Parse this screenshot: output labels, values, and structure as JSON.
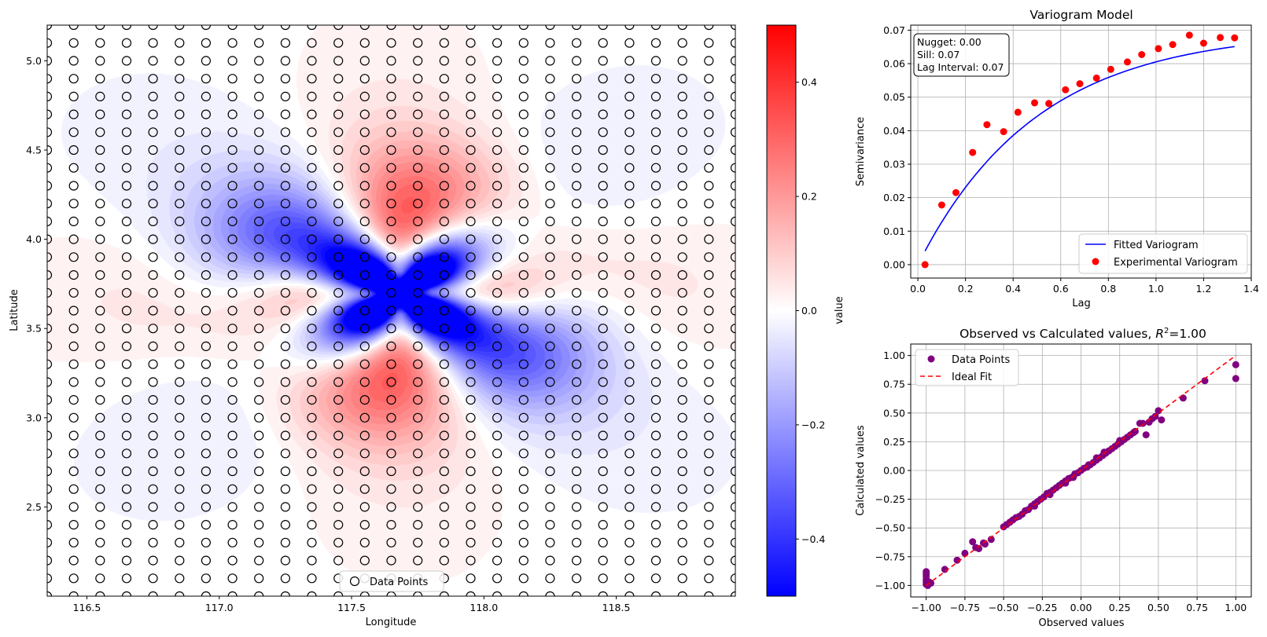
{
  "colors": {
    "vario_line": "#0000ff",
    "vario_points": "#ff0000",
    "scatter_points": "#800080",
    "ideal_line": "#ff0000",
    "grid": "#b0b0b0",
    "cmap_low": "#0000ff",
    "cmap_mid": "#ffffff",
    "cmap_high": "#ff0000"
  },
  "chart_data": [
    {
      "type": "heatmap",
      "xlabel": "Longitude",
      "ylabel": "Latitude",
      "xlim": [
        116.35,
        118.95
      ],
      "ylim": [
        2.0,
        5.2
      ],
      "x_ticks": [
        116.5,
        117.0,
        117.5,
        118.0,
        118.5
      ],
      "x_tick_labels": [
        "116.5",
        "117.0",
        "117.5",
        "118.0",
        "118.5"
      ],
      "y_ticks": [
        2.5,
        3.0,
        3.5,
        4.0,
        4.5,
        5.0
      ],
      "y_tick_labels": [
        "2.5",
        "3.0",
        "3.5",
        "4.0",
        "4.5",
        "5.0"
      ],
      "colorbar_label": "value",
      "colorbar_range": [
        -0.5,
        0.5
      ],
      "colorbar_ticks": [
        0.4,
        0.2,
        0.0,
        -0.2,
        -0.4
      ],
      "colorbar_tick_labels": [
        "0.4",
        "0.2",
        "0.0",
        "−0.2",
        "−0.4"
      ],
      "legend": [
        "Data Points"
      ],
      "legend_position": "lower center",
      "grid_points": {
        "x_start": 116.35,
        "x_step": 0.1,
        "x_count": 27,
        "y_start": 2.0,
        "y_step": 0.1,
        "y_count": 33
      }
    },
    {
      "type": "scatter",
      "title": "Variogram Model",
      "xlabel": "Lag",
      "ylabel": "Semivariance",
      "xlim": [
        -0.03,
        1.4
      ],
      "ylim": [
        -0.004,
        0.0715
      ],
      "x_ticks": [
        0.0,
        0.2,
        0.4,
        0.6,
        0.8,
        1.0,
        1.2,
        1.4
      ],
      "x_tick_labels": [
        "0.0",
        "0.2",
        "0.4",
        "0.6",
        "0.8",
        "1.0",
        "1.2",
        "1.4"
      ],
      "y_ticks": [
        0.0,
        0.01,
        0.02,
        0.03,
        0.04,
        0.05,
        0.06,
        0.07
      ],
      "y_tick_labels": [
        "0.00",
        "0.01",
        "0.02",
        "0.03",
        "0.04",
        "0.05",
        "0.06",
        "0.07"
      ],
      "grid": true,
      "annotation": [
        "Nugget: 0.00",
        "Sill: 0.07",
        "Lag Interval: 0.07"
      ],
      "legend": [
        "Fitted Variogram",
        "Experimental Variogram"
      ],
      "legend_position": "lower right",
      "fitted_model": {
        "nugget": 0.0,
        "sill": 0.07,
        "range": 0.5,
        "x_start": 0.03,
        "x_end": 1.33
      },
      "experimental": {
        "x": [
          0.03,
          0.1,
          0.16,
          0.23,
          0.29,
          0.36,
          0.42,
          0.49,
          0.55,
          0.62,
          0.68,
          0.75,
          0.81,
          0.88,
          0.94,
          1.01,
          1.07,
          1.14,
          1.2,
          1.27,
          1.33
        ],
        "y": [
          0.0,
          0.0178,
          0.0215,
          0.0335,
          0.0418,
          0.0397,
          0.0455,
          0.0483,
          0.0481,
          0.0522,
          0.054,
          0.0557,
          0.0583,
          0.0605,
          0.0627,
          0.0645,
          0.0657,
          0.0685,
          0.0661,
          0.0678,
          0.0677
        ]
      }
    },
    {
      "type": "scatter",
      "title": "Observed vs Calculated values, R²=1.00",
      "title_parts": {
        "main": "Observed vs Calculated values, ",
        "r": "R",
        "sup": "2",
        "tail": "=1.00"
      },
      "xlabel": "Observed values",
      "ylabel": "Calculated values",
      "xlim": [
        -1.1,
        1.1
      ],
      "ylim": [
        -1.1,
        1.1
      ],
      "x_ticks": [
        -1.0,
        -0.75,
        -0.5,
        -0.25,
        0.0,
        0.25,
        0.5,
        0.75,
        1.0
      ],
      "x_tick_labels": [
        "−1.00",
        "−0.75",
        "−0.50",
        "−0.25",
        "0.00",
        "0.25",
        "0.50",
        "0.75",
        "1.00"
      ],
      "y_ticks": [
        -1.0,
        -0.75,
        -0.5,
        -0.25,
        0.0,
        0.25,
        0.5,
        0.75,
        1.0
      ],
      "y_tick_labels": [
        "−1.00",
        "−0.75",
        "−0.50",
        "−0.25",
        "0.00",
        "0.25",
        "0.50",
        "0.75",
        "1.00"
      ],
      "grid": true,
      "legend": [
        "Data Points",
        "Ideal Fit"
      ],
      "legend_position": "upper left",
      "ideal_fit": [
        [
          -1.0,
          -1.0
        ],
        [
          1.0,
          1.0
        ]
      ],
      "points": [
        [
          -1.0,
          -0.88
        ],
        [
          -1.0,
          -0.9
        ],
        [
          -1.0,
          -0.92
        ],
        [
          -1.0,
          -0.95
        ],
        [
          -1.0,
          -0.97
        ],
        [
          -1.0,
          -0.99
        ],
        [
          -0.98,
          -0.97
        ],
        [
          -0.99,
          -1.0
        ],
        [
          -0.97,
          -0.98
        ],
        [
          -0.88,
          -0.86
        ],
        [
          -0.8,
          -0.78
        ],
        [
          -0.75,
          -0.72
        ],
        [
          -0.7,
          -0.62
        ],
        [
          -0.68,
          -0.67
        ],
        [
          -0.66,
          -0.68
        ],
        [
          -0.63,
          -0.63
        ],
        [
          -0.62,
          -0.64
        ],
        [
          -0.58,
          -0.6
        ],
        [
          -0.5,
          -0.49
        ],
        [
          -0.48,
          -0.47
        ],
        [
          -0.46,
          -0.45
        ],
        [
          -0.44,
          -0.43
        ],
        [
          -0.42,
          -0.41
        ],
        [
          -0.4,
          -0.4
        ],
        [
          -0.38,
          -0.38
        ],
        [
          -0.36,
          -0.35
        ],
        [
          -0.34,
          -0.34
        ],
        [
          -0.32,
          -0.31
        ],
        [
          -0.3,
          -0.29
        ],
        [
          -0.28,
          -0.27
        ],
        [
          -0.26,
          -0.25
        ],
        [
          -0.24,
          -0.23
        ],
        [
          -0.22,
          -0.2
        ],
        [
          -0.2,
          -0.19
        ],
        [
          -0.18,
          -0.17
        ],
        [
          -0.16,
          -0.15
        ],
        [
          -0.14,
          -0.13
        ],
        [
          -0.12,
          -0.11
        ],
        [
          -0.1,
          -0.09
        ],
        [
          -0.08,
          -0.07
        ],
        [
          -0.06,
          -0.06
        ],
        [
          -0.04,
          -0.03
        ],
        [
          -0.02,
          -0.02
        ],
        [
          0.0,
          0.0
        ],
        [
          0.02,
          0.02
        ],
        [
          0.04,
          0.03
        ],
        [
          0.06,
          0.05
        ],
        [
          0.08,
          0.07
        ],
        [
          0.1,
          0.09
        ],
        [
          0.12,
          0.11
        ],
        [
          0.14,
          0.13
        ],
        [
          0.16,
          0.15
        ],
        [
          0.18,
          0.17
        ],
        [
          0.2,
          0.19
        ],
        [
          0.22,
          0.21
        ],
        [
          0.24,
          0.23
        ],
        [
          0.26,
          0.25
        ],
        [
          0.28,
          0.27
        ],
        [
          0.3,
          0.29
        ],
        [
          0.32,
          0.31
        ],
        [
          0.34,
          0.33
        ],
        [
          0.38,
          0.41
        ],
        [
          0.4,
          0.41
        ],
        [
          0.42,
          0.31
        ],
        [
          0.44,
          0.42
        ],
        [
          0.46,
          0.45
        ],
        [
          0.48,
          0.47
        ],
        [
          0.5,
          0.52
        ],
        [
          0.52,
          0.44
        ],
        [
          0.66,
          0.63
        ],
        [
          0.8,
          0.78
        ],
        [
          1.0,
          0.8
        ],
        [
          1.0,
          0.92
        ],
        [
          -0.3,
          -0.31
        ],
        [
          -0.1,
          -0.11
        ],
        [
          0.05,
          0.05
        ],
        [
          0.15,
          0.16
        ],
        [
          -0.2,
          -0.21
        ],
        [
          0.1,
          0.11
        ],
        [
          -0.05,
          -0.06
        ],
        [
          0.25,
          0.26
        ],
        [
          0.35,
          0.34
        ]
      ]
    }
  ]
}
